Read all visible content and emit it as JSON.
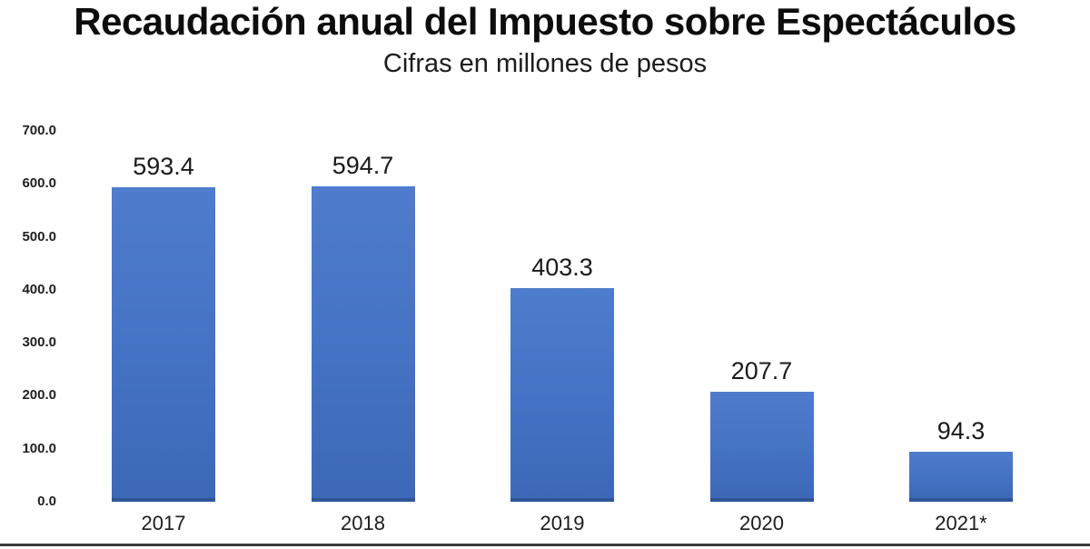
{
  "page": {
    "title": "Recaudación anual del Impuesto sobre Espectáculos",
    "subtitle": "Cifras en millones de pesos"
  },
  "chart_data": {
    "type": "bar",
    "title": "Recaudación anual del Impuesto sobre Espectáculos",
    "subtitle": "Cifras en millones de pesos",
    "categories": [
      "2017",
      "2018",
      "2019",
      "2020",
      "2021*"
    ],
    "values": [
      593.4,
      594.7,
      403.3,
      207.7,
      94.3
    ],
    "value_labels": [
      "593.4",
      "594.7",
      "403.3",
      "207.7",
      "94.3"
    ],
    "xlabel": "",
    "ylabel": "",
    "ylim": [
      0,
      700
    ],
    "ytick_step": 100,
    "ytick_labels": [
      "0.0",
      "100.0",
      "200.0",
      "300.0",
      "400.0",
      "500.0",
      "600.0",
      "700.0"
    ],
    "grid": false,
    "legend": false,
    "bar_color": "#4472C4",
    "bar_edge_color": "#2F5597",
    "text_color": "#1a1a1a"
  }
}
